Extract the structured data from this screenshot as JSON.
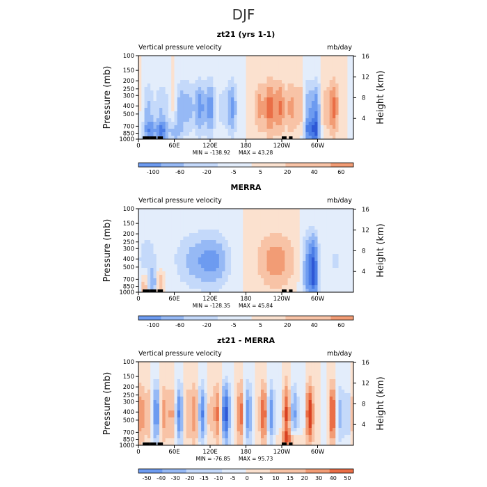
{
  "figure": {
    "title": "DJF",
    "panel_title_left": "Vertical pressure velocity",
    "panel_title_right": "mb/day",
    "y_label_left": "Pressure (mb)",
    "y_label_right": "Height (km)"
  },
  "colors": {
    "neg_scale": [
      "#08088c",
      "#1c34c0",
      "#2e58d6",
      "#4a7ce6",
      "#6d9bf0",
      "#96b9f5",
      "#c4d9fa",
      "#e3edfb"
    ],
    "pos_scale": [
      "#fbe1cf",
      "#f8c3a6",
      "#f29c75",
      "#ea6e46",
      "#d94121",
      "#b31f0b",
      "#7e0c05"
    ],
    "terrain": "#000000"
  },
  "chart_data": [
    {
      "type": "heatmap",
      "title": "zt21 (yrs 1-1)",
      "x_ticks": [
        "0",
        "60E",
        "120E",
        "180",
        "120W",
        "60W"
      ],
      "x_tick_values": [
        0,
        60,
        120,
        180,
        240,
        300
      ],
      "xlim": [
        0,
        360
      ],
      "y_ticks": [
        "100",
        "150",
        "200",
        "250",
        "300",
        "400",
        "500",
        "700",
        "850",
        "1000"
      ],
      "ylim": [
        1000,
        100
      ],
      "y_scale": "log",
      "height_ticks": [
        "4",
        "8",
        "12",
        "16"
      ],
      "min_label": "MIN = -138.92",
      "max_label": "MAX =  43.28",
      "colorbar_labels": [
        "-100",
        "-60",
        "-20",
        "-5",
        "5",
        "20",
        "40",
        "60"
      ],
      "contour_levels": [
        -140,
        -120,
        -100,
        -80,
        -60,
        -40,
        -20,
        -10,
        -5,
        0,
        5,
        10,
        20,
        30,
        40,
        50,
        60,
        70
      ]
    },
    {
      "type": "heatmap",
      "title": "MERRA",
      "x_ticks": [
        "0",
        "60E",
        "120E",
        "180",
        "120W",
        "60W"
      ],
      "x_tick_values": [
        0,
        60,
        120,
        180,
        240,
        300
      ],
      "xlim": [
        0,
        360
      ],
      "y_ticks": [
        "100",
        "150",
        "200",
        "250",
        "300",
        "400",
        "500",
        "700",
        "850",
        "1000"
      ],
      "ylim": [
        1000,
        100
      ],
      "y_scale": "log",
      "height_ticks": [
        "4",
        "8",
        "12",
        "16"
      ],
      "min_label": "MIN = -128.35",
      "max_label": "MAX =  45.84",
      "colorbar_labels": [
        "-100",
        "-60",
        "-20",
        "-5",
        "5",
        "20",
        "40",
        "60"
      ],
      "contour_levels": [
        -140,
        -120,
        -100,
        -80,
        -60,
        -40,
        -20,
        -10,
        -5,
        0,
        5,
        10,
        20,
        30,
        40,
        50,
        60,
        70
      ]
    },
    {
      "type": "heatmap",
      "title": "zt21 - MERRA",
      "x_ticks": [
        "0",
        "60E",
        "120E",
        "180",
        "120W",
        "60W"
      ],
      "x_tick_values": [
        0,
        60,
        120,
        180,
        240,
        300
      ],
      "xlim": [
        0,
        360
      ],
      "y_ticks": [
        "100",
        "150",
        "200",
        "250",
        "300",
        "400",
        "500",
        "700",
        "850",
        "1000"
      ],
      "ylim": [
        1000,
        100
      ],
      "y_scale": "log",
      "height_ticks": [
        "4",
        "8",
        "12",
        "16"
      ],
      "min_label": "MIN = -76.85",
      "max_label": "MAX =  95.73",
      "colorbar_labels": [
        "-50",
        "-40",
        "-30",
        "-20",
        "-15",
        "-10",
        "-5",
        "0",
        "5",
        "10",
        "15",
        "20",
        "30",
        "40",
        "50"
      ],
      "contour_levels": [
        -60,
        -50,
        -40,
        -30,
        -20,
        -15,
        -10,
        -5,
        0,
        5,
        10,
        15,
        20,
        30,
        40,
        50,
        60
      ]
    }
  ]
}
